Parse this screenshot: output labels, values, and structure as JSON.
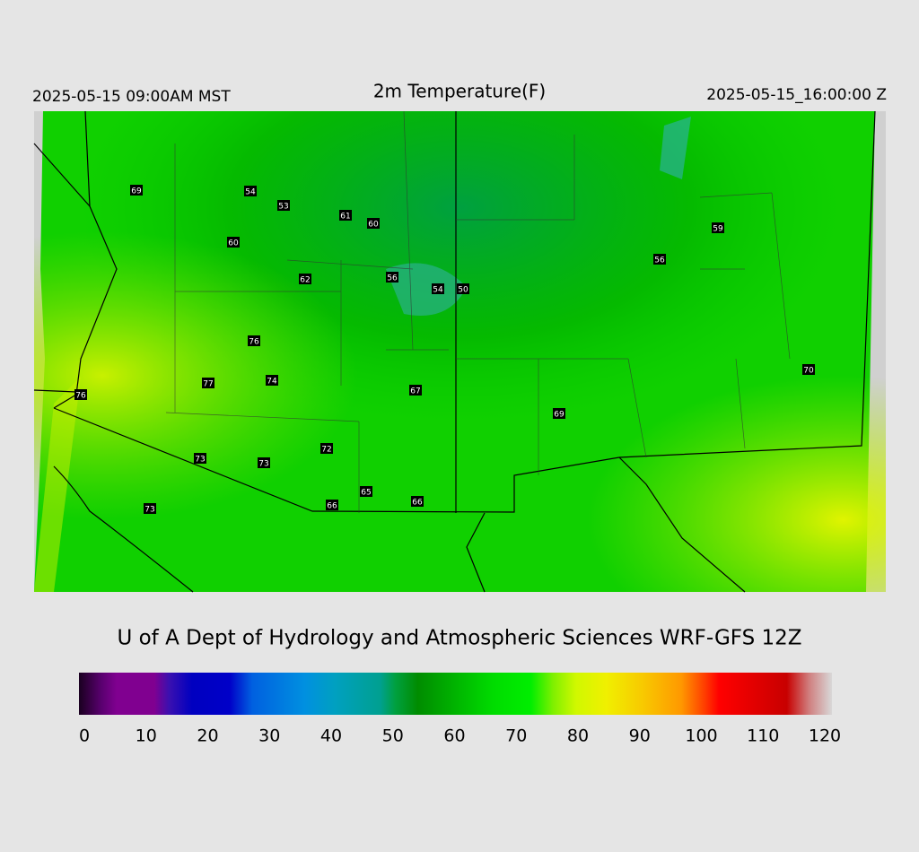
{
  "header": {
    "local_time": "2025-05-15 09:00AM MST",
    "title": "2m Temperature(F)",
    "valid_time": "2025-05-15_16:00:00 Z"
  },
  "map": {
    "labels": [
      "69",
      "54",
      "53",
      "61",
      "60",
      "60",
      "59",
      "56",
      "62",
      "56",
      "54",
      "50",
      "76",
      "70",
      "77",
      "74",
      "76",
      "67",
      "69",
      "72",
      "73",
      "73",
      "65",
      "66",
      "66",
      "73"
    ]
  },
  "footer": {
    "credit": "U of A Dept of Hydrology and Atmospheric Sciences WRF-GFS 12Z"
  },
  "colorbar": {
    "ticks": [
      0,
      10,
      20,
      30,
      40,
      50,
      60,
      70,
      80,
      90,
      100,
      110,
      120
    ]
  }
}
